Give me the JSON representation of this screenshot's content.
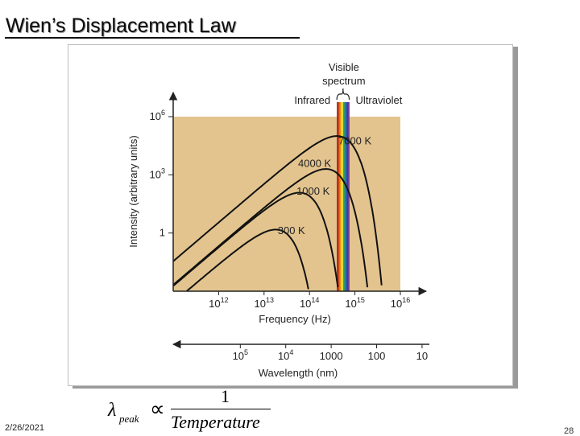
{
  "slide": {
    "title": "Wien’s Displacement Law",
    "date": "2/26/2021",
    "page_number": "28"
  },
  "formula": {
    "lambda": "λ",
    "subscript": "peak",
    "proportional": "∝",
    "numerator": "1",
    "denominator": "Temperature"
  },
  "chart_data": {
    "type": "line",
    "title": "",
    "xlabel": "Frequency (Hz)",
    "ylabel": "Intensity (arbitrary units)",
    "xscale": "log",
    "yscale": "log",
    "xlim": [
      100000000000.0,
      1e+16
    ],
    "ylim": [
      0.001,
      1000000.0
    ],
    "x_ticks": [
      {
        "value": 1000000000000.0,
        "label": "10^12"
      },
      {
        "value": 10000000000000.0,
        "label": "10^13"
      },
      {
        "value": 100000000000000.0,
        "label": "10^14"
      },
      {
        "value": 1000000000000000.0,
        "label": "10^15"
      },
      {
        "value": 1e+16,
        "label": "10^16"
      }
    ],
    "y_ticks": [
      {
        "value": 1,
        "label": "1"
      },
      {
        "value": 1000.0,
        "label": "10^3"
      },
      {
        "value": 1000000.0,
        "label": "10^6"
      }
    ],
    "series": [
      {
        "name": "7000 K",
        "peak_frequency": 400000000000000.0,
        "peak_intensity": 100000.0,
        "label_at_frequency": 1000000000000000.0
      },
      {
        "name": "4000 K",
        "peak_frequency": 230000000000000.0,
        "peak_intensity": 2000.0,
        "label_at_frequency": 130000000000000.0
      },
      {
        "name": "1000 K",
        "peak_frequency": 60000000000000.0,
        "peak_intensity": 120.0,
        "label_at_frequency": 120000000000000.0
      },
      {
        "name": "300 K",
        "peak_frequency": 18000000000000.0,
        "peak_intensity": 1.5,
        "label_at_frequency": 40000000000000.0
      }
    ],
    "visible_spectrum": {
      "label_line1": "Visible",
      "label_line2": "spectrum",
      "left_label": "Infrared",
      "right_label": "Ultraviolet",
      "frequency_range": [
        400000000000000.0,
        750000000000000.0
      ]
    },
    "wavelength_axis": {
      "label": "Wavelength (nm)",
      "ticks": [
        {
          "frequency": 3000000000000.0,
          "label": "10^5"
        },
        {
          "frequency": 30000000000000.0,
          "label": "10^4"
        },
        {
          "frequency": 300000000000000.0,
          "label": "1000"
        },
        {
          "frequency": 3000000000000000.0,
          "label": "100"
        },
        {
          "frequency": 3e+16,
          "label": "10"
        }
      ]
    },
    "colors": {
      "plot_background": "#e3c48f",
      "curve": "#111111",
      "spectrum": [
        "#8e2a18",
        "#d6461d",
        "#f07a18",
        "#f7c515",
        "#e9e43a",
        "#3fa64a",
        "#1f8f80",
        "#2a67b3",
        "#3b3ba0",
        "#6c3a9d"
      ]
    }
  }
}
